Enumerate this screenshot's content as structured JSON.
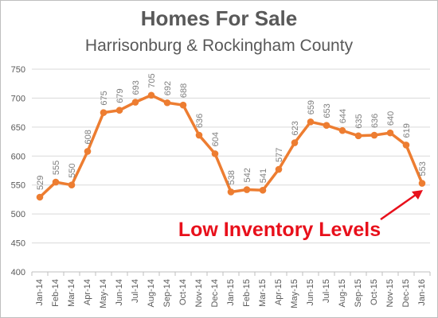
{
  "chart_data": {
    "type": "line",
    "title": "Homes For Sale",
    "subtitle": "Harrisonburg & Rockingham County",
    "categories": [
      "Jan-14",
      "Feb-14",
      "Mar-14",
      "Apr-14",
      "May-14",
      "Jun-14",
      "Jul-14",
      "Aug-14",
      "Sep-14",
      "Oct-14",
      "Nov-14",
      "Dec-14",
      "Jan-15",
      "Feb-15",
      "Mar-15",
      "Apr-15",
      "May-15",
      "Jun-15",
      "Jul-15",
      "Aug-15",
      "Sep-15",
      "Oct-15",
      "Nov-15",
      "Dec-15",
      "Jan-16"
    ],
    "series": [
      {
        "values": [
          529,
          555,
          550,
          608,
          675,
          679,
          693,
          705,
          692,
          688,
          636,
          604,
          538,
          542,
          541,
          577,
          623,
          659,
          653,
          644,
          635,
          636,
          640,
          619,
          553
        ]
      }
    ],
    "ylim": [
      400,
      750
    ],
    "yticks": [
      400,
      450,
      500,
      550,
      600,
      650,
      700,
      750
    ],
    "grid": true,
    "legend": "none",
    "colors": {
      "line": "#ed7d31",
      "grid": "#d9d9d9",
      "annotation": "#e8101b",
      "text": "#595959"
    },
    "annotation": {
      "text": "Low Inventory Levels",
      "points_to": "Jan-16"
    }
  }
}
